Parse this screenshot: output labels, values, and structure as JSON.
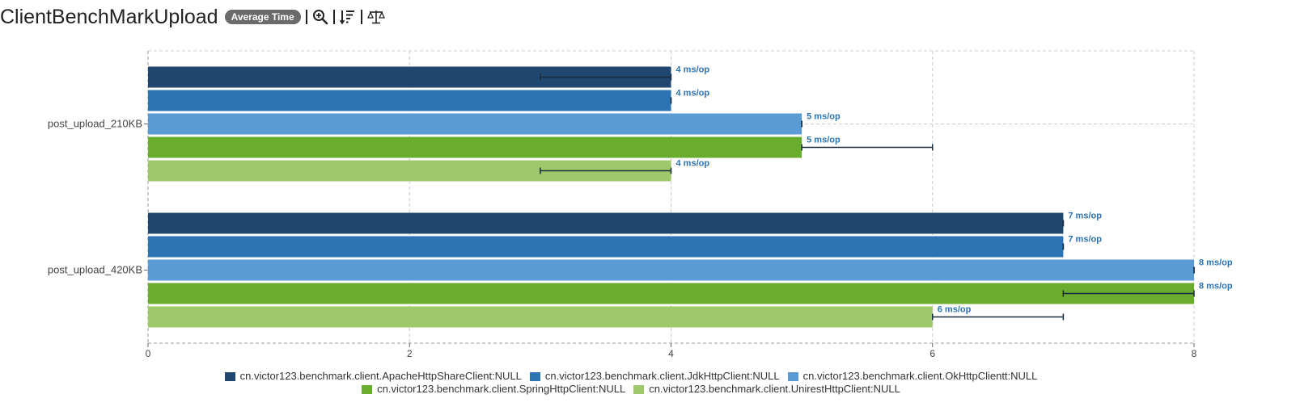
{
  "header": {
    "title": "ClientBenchMarkUpload",
    "mode_badge": "Average Time",
    "tools": [
      {
        "name": "zoom-in-icon"
      },
      {
        "name": "sort-icon"
      },
      {
        "name": "compare-icon"
      }
    ]
  },
  "chart_data": {
    "type": "bar",
    "orientation": "horizontal",
    "categories": [
      "post_upload_210KB",
      "post_upload_420KB"
    ],
    "series": [
      {
        "name": "cn.victor123.benchmark.client.ApacheHttpShareClient:NULL",
        "color": "#1f4770",
        "values": [
          4,
          7
        ],
        "error_low": [
          3,
          7
        ],
        "error_high": [
          4,
          7
        ],
        "labels": [
          "4 ms/op",
          "7 ms/op"
        ]
      },
      {
        "name": "cn.victor123.benchmark.client.JdkHttpClient:NULL",
        "color": "#2c73b4",
        "values": [
          4,
          7
        ],
        "error_low": [
          4,
          7
        ],
        "error_high": [
          4,
          7
        ],
        "labels": [
          "4 ms/op",
          "7 ms/op"
        ]
      },
      {
        "name": "cn.victor123.benchmark.client.OkHttpClientt:NULL",
        "color": "#5a9bd4",
        "values": [
          5,
          8
        ],
        "error_low": [
          5,
          8
        ],
        "error_high": [
          5,
          8
        ],
        "labels": [
          "5 ms/op",
          "8 ms/op"
        ]
      },
      {
        "name": "cn.victor123.benchmark.client.SpringHttpClient:NULL",
        "color": "#6aad2e",
        "values": [
          5,
          8
        ],
        "error_low": [
          5,
          7
        ],
        "error_high": [
          6,
          8
        ],
        "labels": [
          "5 ms/op",
          "8 ms/op"
        ]
      },
      {
        "name": "cn.victor123.benchmark.client.UnirestHttpClient:NULL",
        "color": "#9dc96a",
        "values": [
          4,
          6
        ],
        "error_low": [
          3,
          6
        ],
        "error_high": [
          4,
          7
        ],
        "labels": [
          "4 ms/op",
          "6 ms/op"
        ]
      }
    ],
    "xlim": [
      0,
      8
    ],
    "x_ticks": [
      "0",
      "2",
      "4",
      "6",
      "8"
    ],
    "grid": true,
    "legend_position": "bottom",
    "label_color": "#2c73b4",
    "error_bar_color": "#1a2b3c"
  }
}
